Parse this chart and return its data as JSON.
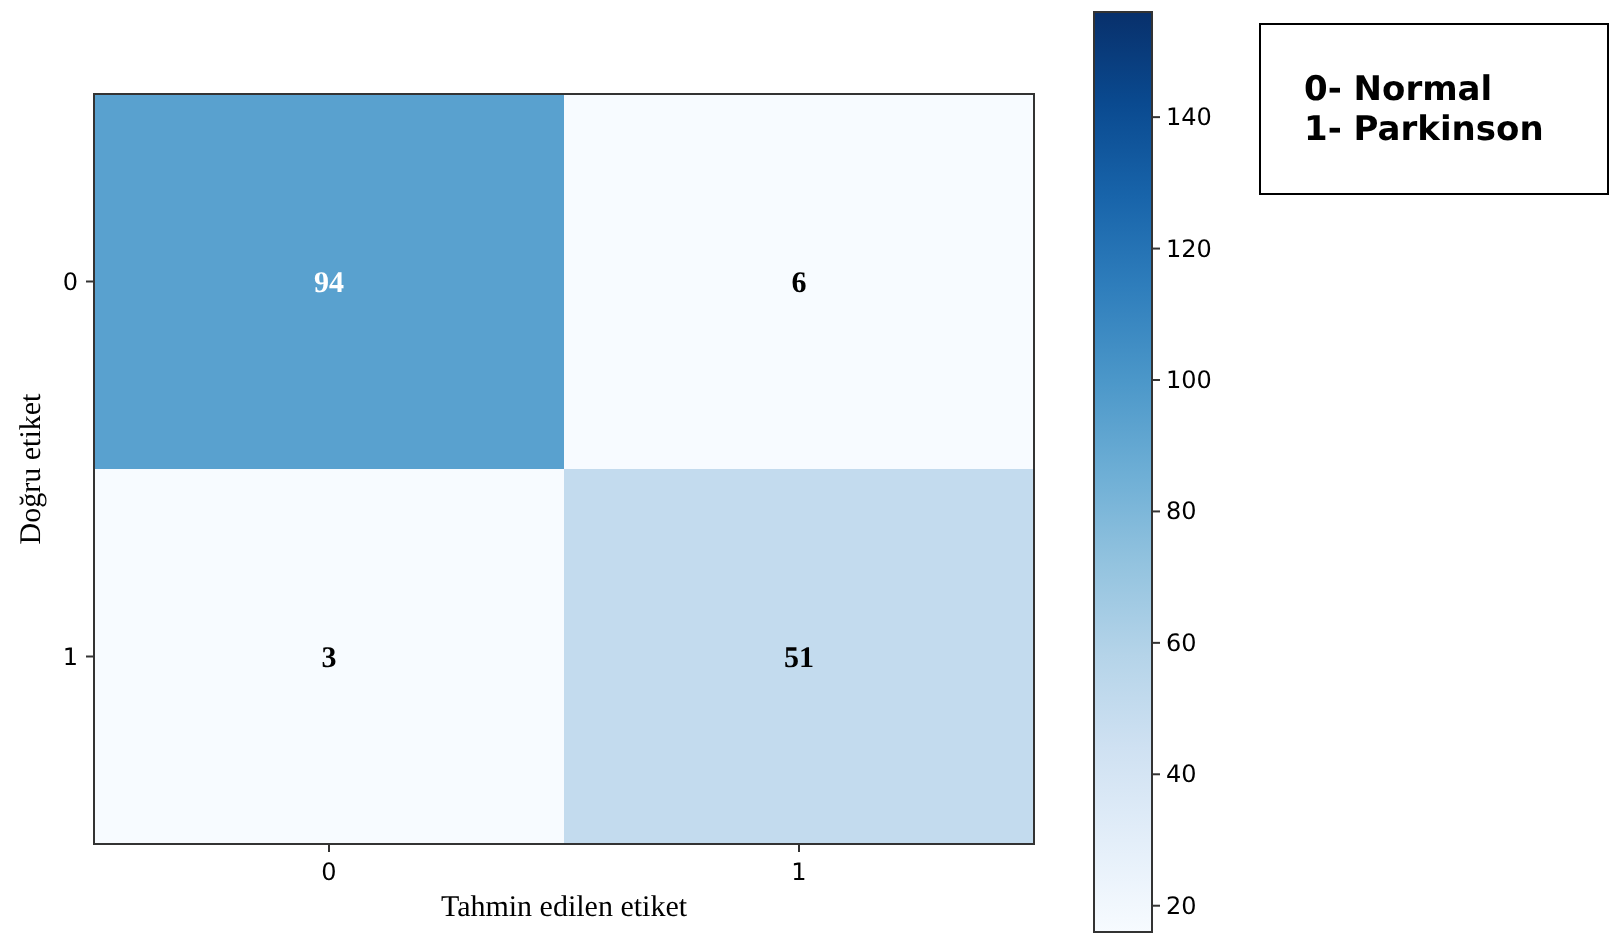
{
  "chart_data": {
    "type": "heatmap",
    "xlabel": "Tahmin edilen etiket",
    "ylabel": "Doğru etiket",
    "categories": [
      "0",
      "1"
    ],
    "y_categories": [
      "0",
      "1"
    ],
    "cells": [
      [
        94,
        6
      ],
      [
        3,
        51
      ]
    ],
    "data_labels": true,
    "clim": [
      16,
      156
    ],
    "cticks": [
      20,
      40,
      60,
      80,
      100,
      120,
      140
    ],
    "annotations": [
      "0- Normal",
      "1- Parkinson"
    ]
  }
}
